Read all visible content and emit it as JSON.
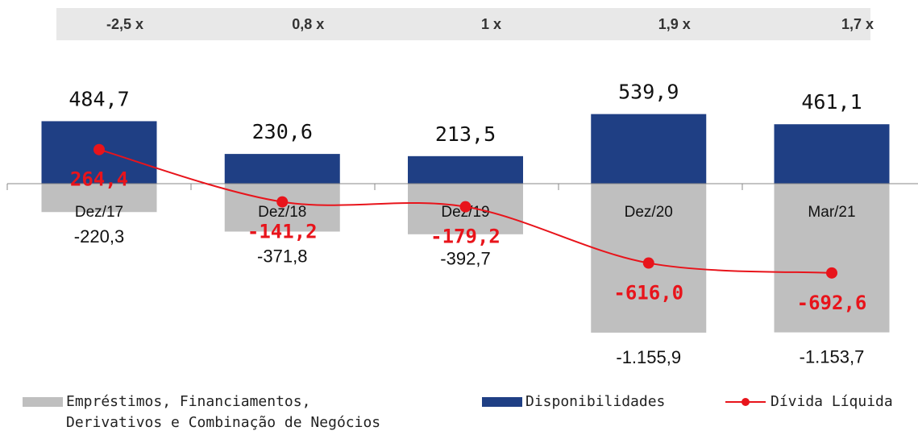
{
  "chart_data": {
    "type": "bar",
    "ratios": [
      "-2,5 x",
      "0,8 x",
      "1 x",
      "1,9 x",
      "1,7 x"
    ],
    "categories": [
      "Dez/17",
      "Dez/18",
      "Dez/19",
      "Dez/20",
      "Mar/21"
    ],
    "ylim": [
      -1250,
      800
    ],
    "series": [
      {
        "name": "Empréstimos, Financiamentos, Derivativos e Combinação de Negócios",
        "color": "#bfbfbf",
        "type": "bar",
        "values": [
          -220.3,
          -371.8,
          -392.7,
          -1155.9,
          -1153.7
        ],
        "value_labels": [
          "-220,3",
          "-371,8",
          "-392,7",
          "-1.155,9",
          "-1.153,7"
        ]
      },
      {
        "name": "Disponibilidades",
        "color": "#1f3f84",
        "type": "bar",
        "values": [
          484.7,
          230.6,
          213.5,
          539.9,
          461.1
        ],
        "value_labels": [
          "484,7",
          "230,6",
          "213,5",
          "539,9",
          "461,1"
        ]
      },
      {
        "name": "Dívida Líquida",
        "color": "#e8141b",
        "type": "line",
        "values": [
          264.4,
          -141.2,
          -179.2,
          -616.0,
          -692.6
        ],
        "value_labels": [
          "264,4",
          "-141,2",
          "-179,2",
          "-616,0",
          "-692,6"
        ]
      }
    ]
  }
}
